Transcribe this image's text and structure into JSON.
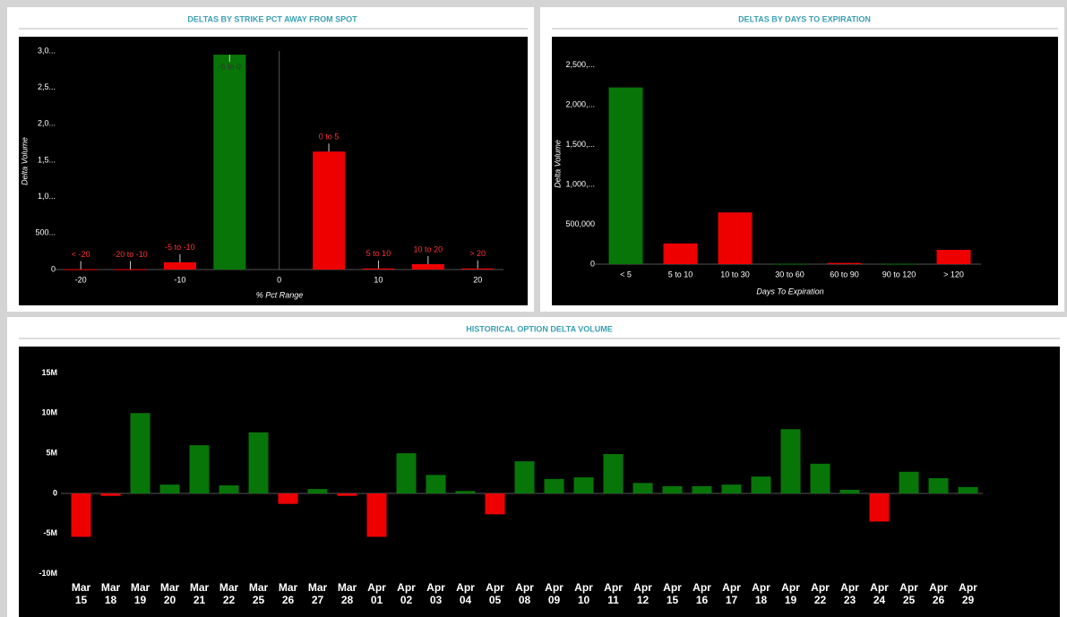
{
  "chart_data": [
    {
      "type": "bar",
      "title": "DELTAS BY STRIKE PCT AWAY FROM SPOT",
      "xlabel": "% Pct Range",
      "ylabel": "Delta Volume",
      "categories": [
        "< -20",
        "-20 to -10",
        "-5 to -10",
        "-5 to 0",
        "0 to 5",
        "5 to 10",
        "10 to 20",
        "> 20"
      ],
      "x": [
        -20,
        -15,
        -10,
        -5,
        5,
        10,
        15,
        20
      ],
      "values": [
        5,
        5,
        100,
        2950,
        1620,
        15,
        75,
        15
      ],
      "colors": [
        "#ee0000",
        "#ee0000",
        "#ee0000",
        "#087508",
        "#ee0000",
        "#ee0000",
        "#ee0000",
        "#ee0000"
      ],
      "xlim": [
        -22,
        22.6
      ],
      "xticks": [
        -20,
        -10,
        0,
        10,
        20
      ],
      "ylim": [
        0,
        3000
      ],
      "yticks": [
        0,
        {
          "value": 500,
          "label": "500..."
        },
        {
          "value": 1000,
          "label": "1,0..."
        },
        {
          "value": 1500,
          "label": "1,5..."
        },
        {
          "value": 2000,
          "label": "2,0..."
        },
        {
          "value": 2500,
          "label": "2,5..."
        },
        {
          "value": 3000,
          "label": "3,0..."
        }
      ]
    },
    {
      "type": "bar",
      "title": "DELTAS BY DAYS TO EXPIRATION",
      "xlabel": "Days To Expiration",
      "ylabel": "Delta Volume",
      "categories": [
        "< 5",
        "5 to 10",
        "10 to 30",
        "30 to 60",
        "60 to 90",
        "90 to 120",
        "> 120"
      ],
      "values": [
        2220000,
        260000,
        650000,
        5000,
        15000,
        5000,
        180000
      ],
      "colors": [
        "#087508",
        "#ee0000",
        "#ee0000",
        "#087508",
        "#ee0000",
        "#087508",
        "#ee0000"
      ],
      "ylim": [
        0,
        2700000
      ],
      "yticks": [
        0,
        {
          "value": 500000,
          "label": "500,000"
        },
        {
          "value": 1000000,
          "label": "1,000,..."
        },
        {
          "value": 1500000,
          "label": "1,500,..."
        },
        {
          "value": 2000000,
          "label": "2,000,..."
        },
        {
          "value": 2500000,
          "label": "2,500,..."
        }
      ]
    },
    {
      "type": "bar",
      "title": "HISTORICAL OPTION DELTA VOLUME",
      "categories": [
        "Mar 15",
        "Mar 18",
        "Mar 19",
        "Mar 20",
        "Mar 21",
        "Mar 22",
        "Mar 25",
        "Mar 26",
        "Mar 27",
        "Mar 28",
        "Apr 01",
        "Apr 02",
        "Apr 03",
        "Apr 04",
        "Apr 05",
        "Apr 08",
        "Apr 09",
        "Apr 10",
        "Apr 11",
        "Apr 12",
        "Apr 15",
        "Apr 16",
        "Apr 17",
        "Apr 18",
        "Apr 19",
        "Apr 22",
        "Apr 23",
        "Apr 24",
        "Apr 25",
        "Apr 26",
        "Apr 29"
      ],
      "values": [
        -5400000,
        -300000,
        10000000,
        1100000,
        6000000,
        1000000,
        7600000,
        -1300000,
        550000,
        -300000,
        -5400000,
        5000000,
        2300000,
        300000,
        -2600000,
        4000000,
        1800000,
        2000000,
        4900000,
        1300000,
        900000,
        900000,
        1100000,
        2100000,
        8000000,
        3700000,
        450000,
        -3500000,
        2700000,
        1900000,
        800000
      ],
      "colors": [
        "#ee0000",
        "#ee0000",
        "#087508",
        "#087508",
        "#087508",
        "#087508",
        "#087508",
        "#ee0000",
        "#087508",
        "#ee0000",
        "#ee0000",
        "#087508",
        "#087508",
        "#087508",
        "#ee0000",
        "#087508",
        "#087508",
        "#087508",
        "#087508",
        "#087508",
        "#087508",
        "#087508",
        "#087508",
        "#087508",
        "#087508",
        "#087508",
        "#087508",
        "#ee0000",
        "#087508",
        "#087508",
        "#087508"
      ],
      "ylim": [
        -11000000,
        17000000
      ],
      "yticks": [
        {
          "value": 15000000,
          "label": "15M"
        },
        {
          "value": 10000000,
          "label": "10M"
        },
        {
          "value": 5000000,
          "label": "5M"
        },
        0,
        {
          "value": -5000000,
          "label": "-5M"
        },
        {
          "value": -10000000,
          "label": "-10M"
        }
      ]
    }
  ]
}
